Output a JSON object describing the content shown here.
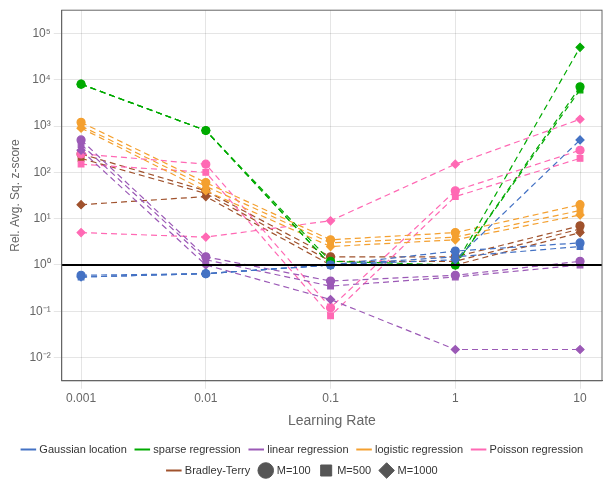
{
  "chart_data": {
    "type": "line",
    "log": true,
    "xlabel": "Learning Rate",
    "ylabel": "Rel. Avg. Sq. z-score",
    "x": [
      0.001,
      0.01,
      0.1,
      1,
      10
    ],
    "xlim": [
      0.0007,
      15
    ],
    "xticks": [
      0.001,
      0.01,
      0.1,
      1,
      10
    ],
    "ylim": [
      0.0031622776601683794,
      316227.7660168379
    ],
    "yticks": [
      {
        "value": 0.01,
        "label": "10⁻²"
      },
      {
        "value": 0.1,
        "label": "10⁻¹"
      },
      {
        "value": 1,
        "label": "10⁰"
      },
      {
        "value": 10,
        "label": "10¹"
      },
      {
        "value": 100,
        "label": "10²"
      },
      {
        "value": 1000,
        "label": "10³"
      },
      {
        "value": 10000,
        "label": "10⁴"
      },
      {
        "value": 100000,
        "label": "10⁵"
      }
    ],
    "grid": true,
    "legend": "bottom",
    "hline": {
      "y": 1.0,
      "color": "#000000"
    },
    "groups": [
      {
        "name": "M=100",
        "marker": "circle",
        "color": "#555555"
      },
      {
        "name": "M=500",
        "marker": "square",
        "color": "#555555"
      },
      {
        "name": "M=1000",
        "marker": "diamond",
        "color": "#555555"
      }
    ],
    "series": [
      {
        "name": "Gaussian location",
        "color": "#4472C4",
        "line_style": "dashed",
        "values": [
          [
            0.6,
            0.65,
            1.0,
            2.0,
            3.0
          ],
          [
            0.55,
            0.65,
            1.0,
            1.5,
            2.5
          ],
          [
            0.55,
            0.65,
            1.0,
            1.3,
            500.0
          ]
        ]
      },
      {
        "name": "sparse regression",
        "color": "#00AA00",
        "line_style": "dashed",
        "values": [
          [
            8000.0,
            800.0,
            1.2,
            1.0,
            7000.0
          ],
          [
            8000.0,
            800.0,
            1.0,
            1.0,
            6000.0
          ],
          [
            8000.0,
            800.0,
            1.0,
            1.0,
            50000.0
          ]
        ]
      },
      {
        "name": "linear regression",
        "color": "#9B59B6",
        "line_style": "dashed",
        "values": [
          [
            500.0,
            1.5,
            0.45,
            0.6,
            1.2
          ],
          [
            400.0,
            1.3,
            0.35,
            0.55,
            1.0
          ],
          [
            300.0,
            1.0,
            0.18,
            0.015,
            0.015
          ]
        ]
      },
      {
        "name": "logistic regression",
        "color": "#F4A030",
        "line_style": "dashed",
        "values": [
          [
            1200.0,
            60.0,
            3.5,
            5.0,
            20.0
          ],
          [
            1000.0,
            50.0,
            3.0,
            4.0,
            15.0
          ],
          [
            900.0,
            40.0,
            2.5,
            3.5,
            12.0
          ]
        ]
      },
      {
        "name": "Poisson regression",
        "color": "#FF69B4",
        "line_style": "dashed",
        "values": [
          [
            250.0,
            150.0,
            0.12,
            40.0,
            300.0
          ],
          [
            150.0,
            100.0,
            0.08,
            30.0,
            200.0
          ],
          [
            5.0,
            4.0,
            9.0,
            150.0,
            1400.0
          ]
        ]
      },
      {
        "name": "Bradley-Terry",
        "color": "#A0522D",
        "line_style": "dashed",
        "values": [
          [
            250.0,
            40.0,
            1.5,
            1.5,
            7.0
          ],
          [
            200.0,
            35.0,
            1.2,
            1.2,
            6.0
          ],
          [
            20.0,
            30.0,
            1.0,
            1.0,
            5.0
          ]
        ]
      }
    ]
  }
}
